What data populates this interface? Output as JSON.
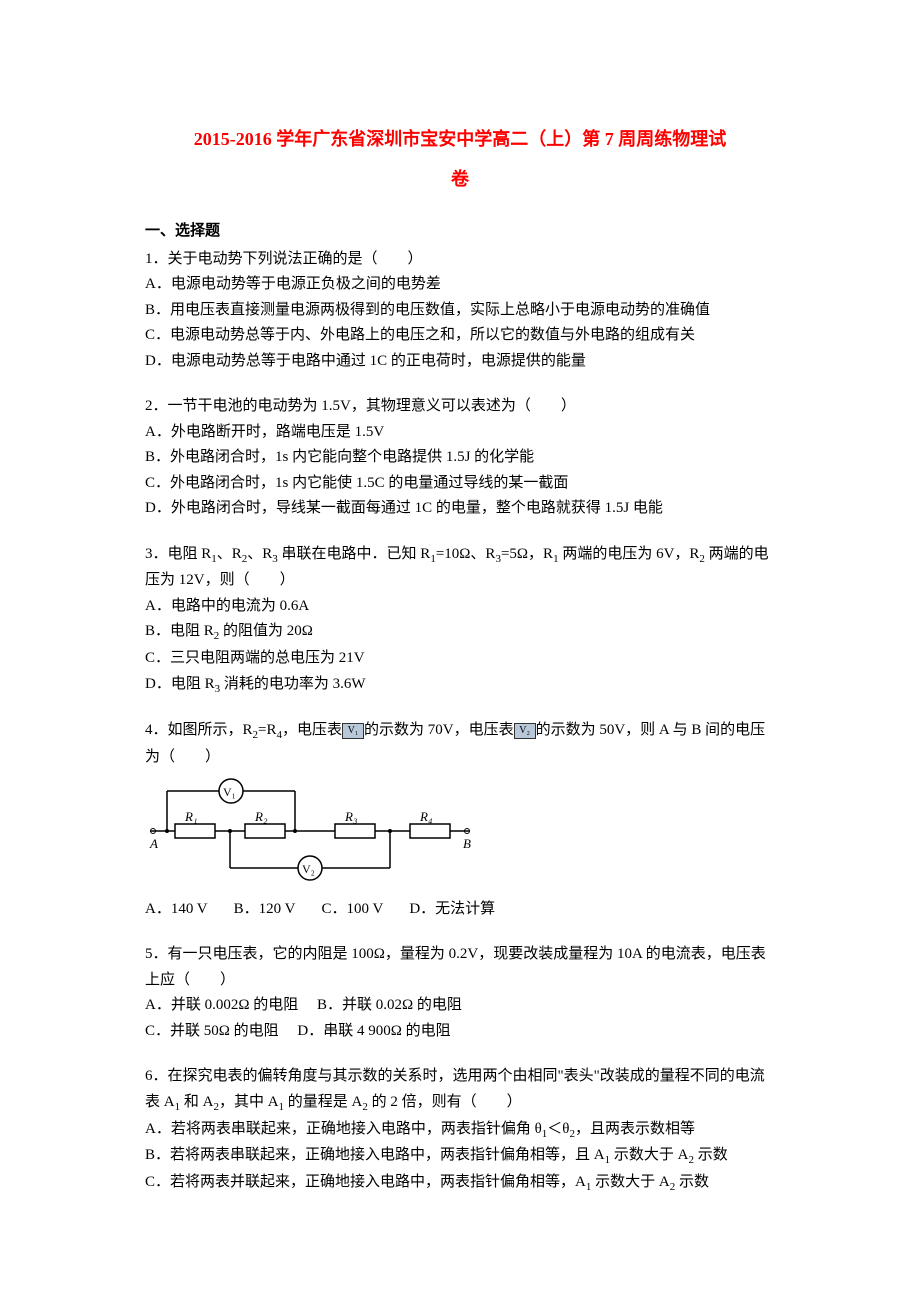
{
  "title_line1": "2015-2016 学年广东省深圳市宝安中学高二（上）第 7 周周练物理试",
  "title_line2": "卷",
  "section_heading": "一、选择题",
  "questions": [
    {
      "stem": "1．关于电动势下列说法正确的是（　　）",
      "opts": [
        "A．电源电动势等于电源正负极之间的电势差",
        "B．用电压表直接测量电源两极得到的电压数值，实际上总略小于电源电动势的准确值",
        "C．电源电动势总等于内、外电路上的电压之和，所以它的数值与外电路的组成有关",
        "D．电源电动势总等于电路中通过 1C 的正电荷时，电源提供的能量"
      ]
    },
    {
      "stem": "2．一节干电池的电动势为 1.5V，其物理意义可以表述为（　　）",
      "opts": [
        "A．外电路断开时，路端电压是 1.5V",
        "B．外电路闭合时，1s 内它能向整个电路提供 1.5J 的化学能",
        "C．外电路闭合时，1s 内它能使 1.5C 的电量通过导线的某一截面",
        "D．外电路闭合时，导线某一截面每通过 1C 的电量，整个电路就获得 1.5J 电能"
      ]
    },
    {
      "stem_html": "3．电阻 R<sub>1</sub>、R<sub>2</sub>、R<sub>3</sub> 串联在电路中．已知 R<sub>1</sub>=10Ω、R<sub>3</sub>=5Ω，R<sub>1</sub> 两端的电压为 6V，R<sub>2</sub> 两端的电压为 12V，则（　　）",
      "opts_html": [
        "A．电路中的电流为 0.6A",
        "B．电阻 R<sub>2</sub> 的阻值为 20Ω",
        "C．三只电阻两端的总电压为 21V",
        "D．电阻 R<sub>3</sub> 消耗的电功率为 3.6W"
      ]
    },
    {
      "stem_pre": "4．如图所示，R",
      "stem_mid1": "=R",
      "stem_mid2": "，电压表",
      "v1_label": "V₁",
      "stem_mid3": "的示数为 70V，电压表",
      "v2_label": "V₂",
      "stem_mid4": "的示数为 50V，则 A 与 B 间的电压为（　　）",
      "diagram": {
        "R1": "R₁",
        "R2": "R₂",
        "R3": "R₃",
        "R4": "R₄",
        "V1": "V₁",
        "V2": "V₂",
        "A": "A",
        "B": "B"
      },
      "opts_inline": [
        "A．140 V",
        "B．120 V",
        "C．100 V",
        "D．无法计算"
      ]
    },
    {
      "stem": "5．有一只电压表，它的内阻是 100Ω，量程为 0.2V，现要改装成量程为 10A 的电流表，电压表上应（　　）",
      "opts_grid": [
        [
          "A．并联 0.002Ω 的电阻",
          "B．并联 0.02Ω 的电阻"
        ],
        [
          "C．并联 50Ω 的电阻",
          "D．串联 4 900Ω 的电阻"
        ]
      ]
    },
    {
      "stem_html": "6．在探究电表的偏转角度与其示数的关系时，选用两个由相同\"表头\"改装成的量程不同的电流表 A<sub>1</sub> 和 A<sub>2</sub>，其中 A<sub>1</sub> 的量程是 A<sub>2</sub> 的 2 倍，则有（　　）",
      "opts_html": [
        "A．若将两表串联起来，正确地接入电路中，两表指针偏角 θ<sub>1</sub>＜θ<sub>2</sub>，且两表示数相等",
        "B．若将两表串联起来，正确地接入电路中，两表指针偏角相等，且 A<sub>1</sub> 示数大于 A<sub>2</sub> 示数",
        "C．若将两表并联起来，正确地接入电路中，两表指针偏角相等，A<sub>1</sub> 示数大于 A<sub>2</sub> 示数"
      ]
    }
  ]
}
